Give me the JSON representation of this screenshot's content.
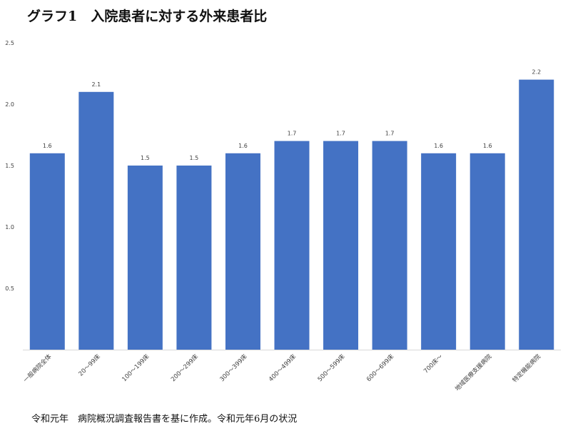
{
  "chart_data": {
    "type": "bar",
    "title": "グラフ1　入院患者に対する外来患者比",
    "categories": [
      "一般病院全体",
      "20～99床",
      "100～199床",
      "200～299床",
      "300～399床",
      "400～499床",
      "500～599床",
      "600～699床",
      "700床～",
      "地域医療支援病院",
      "特定機能病院"
    ],
    "values": [
      1.6,
      2.1,
      1.5,
      1.5,
      1.6,
      1.7,
      1.7,
      1.7,
      1.6,
      1.6,
      2.2
    ],
    "value_labels": [
      "1.6",
      "2.1",
      "1.5",
      "1.5",
      "1.6",
      "1.7",
      "1.7",
      "1.7",
      "1.6",
      "1.6",
      "2.2"
    ],
    "ylim": [
      0,
      2.5
    ],
    "y_ticks": [
      0.5,
      1.0,
      1.5,
      2.0,
      2.5
    ],
    "y_tick_labels": [
      "0.5",
      "1.0",
      "1.5",
      "2.0",
      "2.5"
    ],
    "xlabel": "",
    "ylabel": "",
    "grid": false,
    "bar_color": "#4472c4",
    "axis_color": "#d9d9d9",
    "label_color": "#404040"
  },
  "footnote": "令和元年　病院概況調査報告書を基に作成。令和元年6月の状況"
}
